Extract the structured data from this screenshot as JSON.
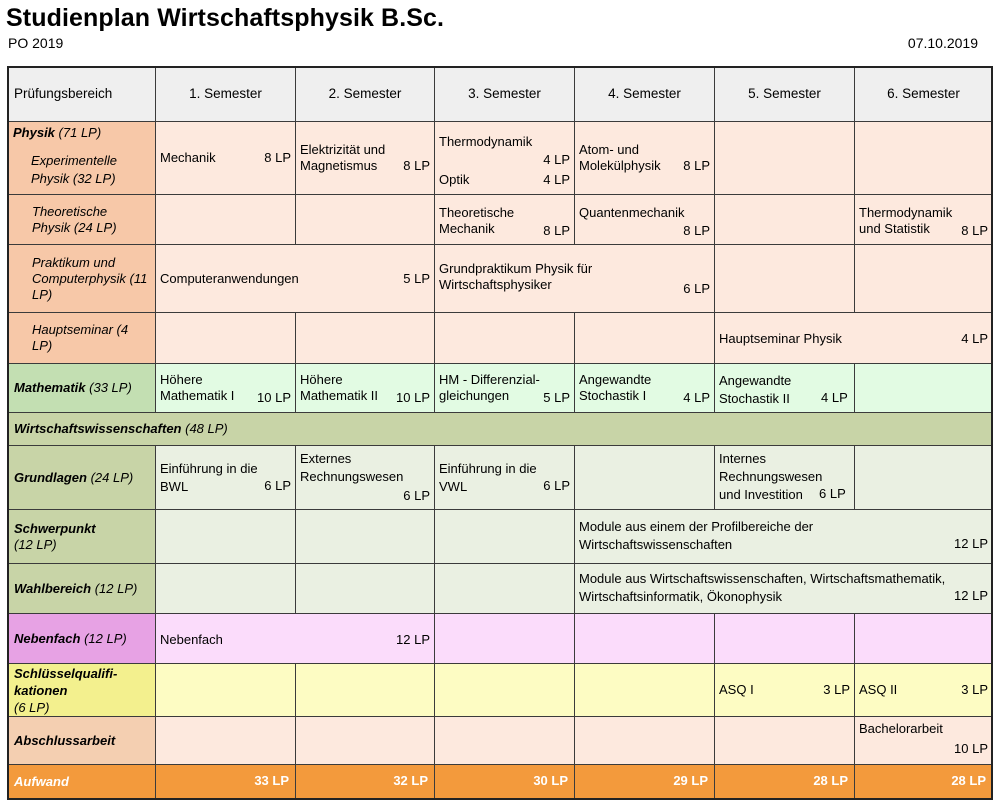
{
  "header": {
    "title": "Studienplan Wirtschaftsphysik B.Sc.",
    "po": "PO 2019",
    "date": "07.10.2019"
  },
  "columns": {
    "area": "Prüfungsbereich",
    "semesters": [
      "1. Semester",
      "2. Semester",
      "3. Semester",
      "4. Semester",
      "5. Semester",
      "6. Semester"
    ]
  },
  "categories": {
    "physik_name": "Physik",
    "physik_lp": "(71 LP)",
    "experimentelle": "Experimentelle Physik (32 LP)",
    "theoretische": "Theoretische Physik (24 LP)",
    "praktikum": "Praktikum und Computerphysik (11 LP)",
    "hauptseminar": "Hauptseminar (4 LP)",
    "mathematik_name": "Mathematik",
    "mathematik_lp": "(33 LP)",
    "wiwi_name": "Wirtschaftswissenschaften",
    "wiwi_lp": "(48 LP)",
    "grundlagen_name": "Grundlagen",
    "grundlagen_lp": "(24 LP)",
    "schwerpunkt_name": "Schwerpunkt",
    "schwerpunkt_lp": "(12 LP)",
    "wahlbereich_name": "Wahlbereich",
    "wahlbereich_lp": "(12 LP)",
    "nebenfach_name": "Nebenfach",
    "nebenfach_lp": "(12 LP)",
    "sq_name": "Schlüsselqualifi-\nkationen",
    "sq_lp": "(6 LP)",
    "abschluss_name": "Abschlussarbeit",
    "aufwand_name": "Aufwand"
  },
  "modules": {
    "mechanik": {
      "name": "Mechanik",
      "lp": "8 LP"
    },
    "elektrizitaet": {
      "name": "Elektrizität und\nMagnetismus",
      "lp": "8 LP"
    },
    "thermodynamik": {
      "name": "Thermodynamik",
      "lp": "4 LP"
    },
    "optik": {
      "name": "Optik",
      "lp": "4 LP"
    },
    "atom": {
      "name": "Atom- und\nMolekülphysik",
      "lp": "8 LP"
    },
    "theo_mechanik": {
      "name": "Theoretische\nMechanik",
      "lp": "8 LP"
    },
    "quanten": {
      "name": "Quantenmechanik",
      "lp": "8 LP"
    },
    "thermo_stat": {
      "name": "Thermodynamik\nund Statistik",
      "lp": "8 LP"
    },
    "computer": {
      "name": "Computeranwendungen",
      "lp": "5 LP"
    },
    "grundpraktikum": {
      "name": "Grundpraktikum Physik für\nWirtschaftsphysiker",
      "lp": "6 LP"
    },
    "hauptseminar": {
      "name": "Hauptseminar Physik",
      "lp": "4 LP"
    },
    "hm1": {
      "name": "Höhere\nMathematik I",
      "lp": "10 LP"
    },
    "hm2": {
      "name": "Höhere\nMathematik II",
      "lp": "10 LP"
    },
    "hm_diff": {
      "name": "HM - Differenzial-\ngleichungen",
      "lp": "5 LP"
    },
    "stoch1": {
      "name": "Angewandte\nStochastik I",
      "lp": "4 LP"
    },
    "stoch2": {
      "name": "Angewandte\nStochastik II",
      "lp": "4 LP"
    },
    "bwl": {
      "name": "Einführung in die\nBWL",
      "lp": "6 LP"
    },
    "ext_rw": {
      "name": "Externes\nRechnungswesen",
      "lp": "6 LP"
    },
    "vwl": {
      "name": "Einführung in die\nVWL",
      "lp": "6 LP"
    },
    "int_rw": {
      "name": "Internes\nRechnungswesen\nund Investition",
      "lp": "6 LP"
    },
    "profil": {
      "name": "Module aus einem der Profilbereiche der\nWirtschaftswissenschaften",
      "lp": "12 LP"
    },
    "wahl": {
      "name": "Module aus Wirtschaftswissenschaften, Wirtschaftsmathematik,\nWirtschaftsinformatik, Ökonophysik",
      "lp": "12 LP"
    },
    "nebenfach": {
      "name": "Nebenfach",
      "lp": "12 LP"
    },
    "asq1": {
      "name": "ASQ I",
      "lp": "3 LP"
    },
    "asq2": {
      "name": "ASQ II",
      "lp": "3 LP"
    },
    "bachelor": {
      "name": "Bachelorarbeit",
      "lp": "10 LP"
    }
  },
  "aufwand": [
    "33 LP",
    "32 LP",
    "30 LP",
    "29 LP",
    "28 LP",
    "28 LP"
  ],
  "colors": {
    "physik": "#fde9de",
    "mathematik": "#e2fbe3",
    "wirtschaft": "#eaf0e2",
    "nebenfach": "#fbdcfb",
    "schluesselqualifikation": "#fdfcc3",
    "aufwand": "#f39a3c"
  }
}
